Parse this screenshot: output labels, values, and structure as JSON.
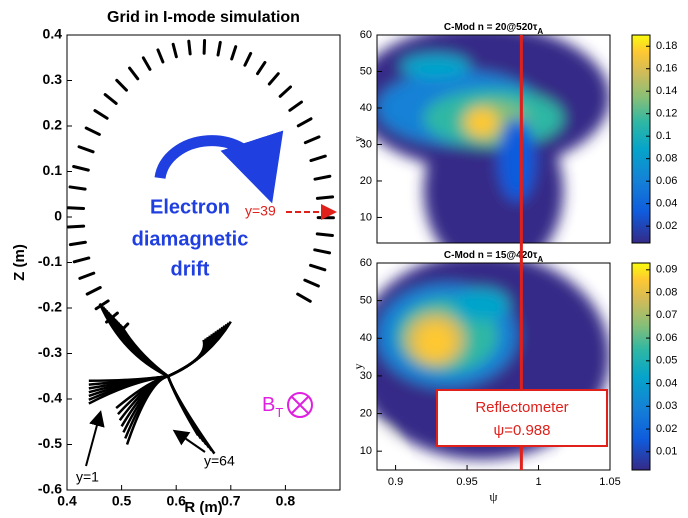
{
  "chart_data": [
    {
      "type": "grid",
      "title": "Grid in I-mode simulation",
      "xlabel": "R (m)",
      "ylabel": "Z (m)",
      "xlim": [
        0.4,
        0.9
      ],
      "xticks": [
        0.4,
        0.5,
        0.6,
        0.7,
        0.8
      ],
      "ylim": [
        -0.6,
        0.4
      ],
      "yticks": [
        -0.6,
        -0.5,
        -0.4,
        -0.3,
        -0.2,
        -0.1,
        0,
        0.1,
        0.2,
        0.3,
        0.4
      ],
      "annotations": {
        "drift": [
          "Electron",
          "diamagnetic",
          "drift"
        ],
        "marker_39": "y=39",
        "marker_1": "y=1",
        "marker_64": "y=64",
        "field": "B",
        "field_subscript": "T"
      }
    },
    {
      "type": "heatmap",
      "title": "C-Mod n = 20@520τ",
      "title_subscript": "A",
      "ylabel": "y",
      "xlim": [
        0.887,
        1.05
      ],
      "ylim": [
        3,
        60
      ],
      "yticks": [
        10,
        20,
        30,
        40,
        50,
        60
      ],
      "clim": [
        0.005,
        0.19
      ],
      "cticks": [
        0.02,
        0.04,
        0.06,
        0.08,
        0.1,
        0.12,
        0.14,
        0.16,
        0.18
      ]
    },
    {
      "type": "heatmap",
      "title": "C-Mod n = 15@420τ",
      "title_subscript": "A",
      "ylabel": "y",
      "xlabel": "ψ",
      "xlim": [
        0.887,
        1.05
      ],
      "xticks": [
        0.9,
        0.95,
        1,
        1.05
      ],
      "ylim": [
        5,
        60
      ],
      "yticks": [
        10,
        20,
        30,
        40,
        50,
        60
      ],
      "clim": [
        0.002,
        0.093
      ],
      "cticks": [
        0.01,
        0.02,
        0.03,
        0.04,
        0.05,
        0.06,
        0.07,
        0.08,
        0.09
      ],
      "reflectometer": {
        "x": 0.988,
        "label": "Reflectometer",
        "value_label": "ψ=0.988"
      }
    }
  ]
}
